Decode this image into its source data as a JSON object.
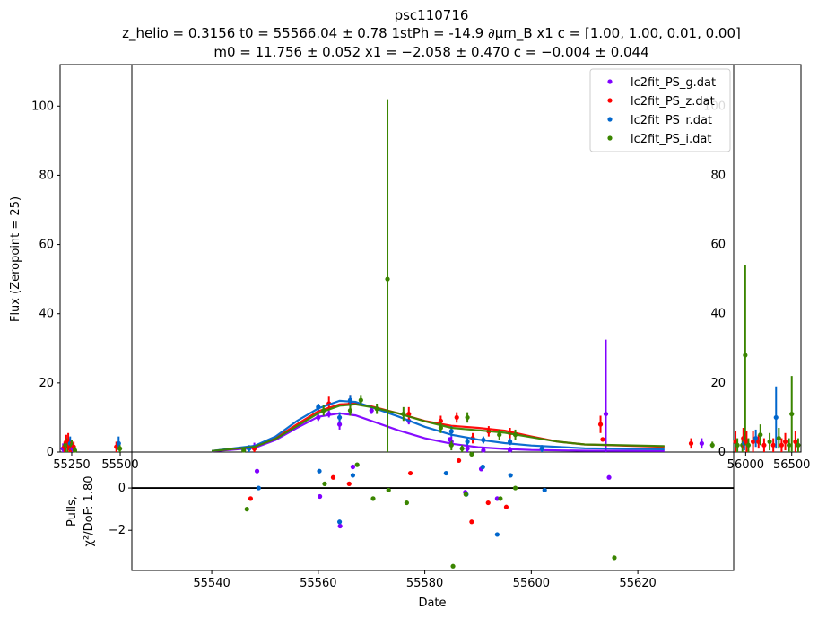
{
  "title": {
    "line1": "psc110716",
    "line2": "z_helio = 0.3156 t0 = 55566.04 ± 0.78 1stPh = -14.9 ∂μm_B x1 c = [1.00, 1.00, 0.01, 0.00]",
    "line3": "m0 = 11.756 ± 0.052 x1 = −2.058 ± 0.470 c = −0.004 ± 0.044"
  },
  "chart_data": {
    "type": "scatter",
    "ylabel": "Flux (Zeropoint = 25)",
    "xlabel": "Date",
    "pulls_ylabel_line1": "Pulls,",
    "pulls_ylabel_line2": "χ²/DoF: 1.80",
    "ylim": [
      0,
      112
    ],
    "xlim_main": [
      55525,
      55638
    ],
    "xlim_left_inset": [
      55190,
      55560
    ],
    "xlim_right_inset": [
      55870,
      56600
    ],
    "pulls_ylim": [
      -3.9,
      1.7
    ],
    "main_xticks": [
      "55540",
      "55560",
      "55580",
      "55600",
      "55620"
    ],
    "yticks": [
      "0",
      "20",
      "40",
      "60",
      "80",
      "100"
    ],
    "pulls_yticks": [
      "0",
      "−2"
    ],
    "left_inset_xticks": [
      "55250",
      "55500"
    ],
    "right_inset_xticks": [
      "56000",
      "56500"
    ],
    "legend_location": "upper right",
    "series": [
      {
        "name": "lc2fit_PS_g.dat",
        "color": "#8000ff",
        "points": [
          [
            55548,
            1.5,
            1.2
          ],
          [
            55560,
            10.0,
            1.0
          ],
          [
            55562,
            11.0,
            1.0
          ],
          [
            55564,
            8.0,
            1.5
          ],
          [
            55566,
            12.0,
            1.0
          ],
          [
            55570,
            12.0,
            1.0
          ],
          [
            55577,
            9.0,
            1.0
          ],
          [
            55585,
            3.0,
            1.5
          ],
          [
            55588,
            1.0,
            1.0
          ],
          [
            55591,
            0.5,
            1.0
          ],
          [
            55596,
            0.5,
            1.0
          ],
          [
            55614,
            11.0,
            21.5
          ]
        ],
        "model": [
          [
            55540,
            0.2
          ],
          [
            55548,
            1.2
          ],
          [
            55552,
            3.5
          ],
          [
            55556,
            7.0
          ],
          [
            55560,
            10.2
          ],
          [
            55564,
            11.2
          ],
          [
            55567,
            10.6
          ],
          [
            55570,
            9.0
          ],
          [
            55575,
            6.3
          ],
          [
            55580,
            4.0
          ],
          [
            55585,
            2.4
          ],
          [
            55590,
            1.4
          ],
          [
            55595,
            0.9
          ],
          [
            55600,
            0.6
          ],
          [
            55610,
            0.4
          ],
          [
            55625,
            0.3
          ]
        ],
        "pulls": [
          [
            55548.5,
            0.8
          ],
          [
            55560.3,
            -0.4
          ],
          [
            55564.1,
            -1.8
          ],
          [
            55566.5,
            1.0
          ],
          [
            55584.7,
            2.3
          ],
          [
            55587.6,
            -0.2
          ],
          [
            55590.6,
            0.9
          ],
          [
            55593.6,
            -0.5
          ],
          [
            55614.6,
            0.5
          ]
        ]
      },
      {
        "name": "lc2fit_PS_z.dat",
        "color": "#ff0000",
        "points": [
          [
            55548,
            1.0,
            1.0
          ],
          [
            55562,
            14.0,
            2.0
          ],
          [
            55566,
            14.0,
            2.5
          ],
          [
            55577,
            11.0,
            2.0
          ],
          [
            55583,
            9.0,
            1.5
          ],
          [
            55586,
            10.0,
            1.5
          ],
          [
            55589,
            4.0,
            1.5
          ],
          [
            55592,
            6.0,
            1.5
          ],
          [
            55596,
            5.5,
            1.5
          ],
          [
            55613,
            8.0,
            2.5
          ]
        ],
        "model": [
          [
            55540,
            0.3
          ],
          [
            55548,
            1.5
          ],
          [
            55552,
            4.0
          ],
          [
            55556,
            8.0
          ],
          [
            55560,
            11.8
          ],
          [
            55564,
            13.8
          ],
          [
            55567,
            14.0
          ],
          [
            55570,
            13.2
          ],
          [
            55575,
            11.2
          ],
          [
            55580,
            9.0
          ],
          [
            55585,
            7.6
          ],
          [
            55590,
            7.0
          ],
          [
            55595,
            6.2
          ],
          [
            55600,
            4.5
          ],
          [
            55605,
            3.0
          ],
          [
            55610,
            2.2
          ],
          [
            55625,
            1.5
          ]
        ],
        "pulls": [
          [
            55547.3,
            -0.5
          ],
          [
            55562.8,
            0.5
          ],
          [
            55565.8,
            0.2
          ],
          [
            55577.3,
            0.7
          ],
          [
            55586.4,
            1.3
          ],
          [
            55588.8,
            -1.6
          ],
          [
            55591.9,
            -0.7
          ],
          [
            55595.3,
            -0.9
          ],
          [
            55613.4,
            2.3
          ]
        ]
      },
      {
        "name": "lc2fit_PS_r.dat",
        "color": "#0066cc",
        "points": [
          [
            55547,
            1.0,
            1.0
          ],
          [
            55560,
            13.0,
            1.0
          ],
          [
            55564,
            10.0,
            1.5
          ],
          [
            55566,
            15.0,
            1.5
          ],
          [
            55585,
            6.0,
            1.5
          ],
          [
            55588,
            3.0,
            1.0
          ],
          [
            55591,
            3.5,
            1.0
          ],
          [
            55596,
            3.0,
            1.0
          ],
          [
            55602,
            1.0,
            1.0
          ]
        ],
        "model": [
          [
            55540,
            0.3
          ],
          [
            55548,
            1.8
          ],
          [
            55552,
            4.5
          ],
          [
            55556,
            9.0
          ],
          [
            55560,
            12.6
          ],
          [
            55564,
            14.8
          ],
          [
            55567,
            14.5
          ],
          [
            55570,
            13.0
          ],
          [
            55575,
            10.3
          ],
          [
            55580,
            7.3
          ],
          [
            55585,
            5.0
          ],
          [
            55590,
            3.6
          ],
          [
            55595,
            2.6
          ],
          [
            55600,
            1.9
          ],
          [
            55610,
            1.1
          ],
          [
            55625,
            0.8
          ]
        ],
        "pulls": [
          [
            55548.8,
            0.0
          ],
          [
            55560.2,
            0.8
          ],
          [
            55564.0,
            -1.6
          ],
          [
            55566.5,
            0.6
          ],
          [
            55584.0,
            0.7
          ],
          [
            55587.8,
            -0.3
          ],
          [
            55590.9,
            1.0
          ],
          [
            55593.6,
            -2.2
          ],
          [
            55596.1,
            0.6
          ],
          [
            55602.5,
            -0.1
          ]
        ]
      },
      {
        "name": "lc2fit_PS_i.dat",
        "color": "#3a8500",
        "points": [
          [
            55546,
            0.5,
            0.8
          ],
          [
            55561,
            12.0,
            1.5
          ],
          [
            55566,
            12.0,
            1.5
          ],
          [
            55568,
            15.0,
            1.5
          ],
          [
            55571,
            12.5,
            1.5
          ],
          [
            55573,
            50.0,
            52.0
          ],
          [
            55576,
            11.0,
            2.0
          ],
          [
            55583,
            7.0,
            1.5
          ],
          [
            55585,
            2.0,
            1.5
          ],
          [
            55587,
            1.0,
            1.0
          ],
          [
            55588,
            10.0,
            1.5
          ],
          [
            55594,
            5.0,
            1.5
          ],
          [
            55597,
            5.0,
            1.5
          ]
        ],
        "model": [
          [
            55540,
            0.3
          ],
          [
            55548,
            1.5
          ],
          [
            55552,
            3.8
          ],
          [
            55556,
            7.5
          ],
          [
            55560,
            11.2
          ],
          [
            55564,
            13.4
          ],
          [
            55567,
            13.8
          ],
          [
            55570,
            13.0
          ],
          [
            55575,
            11.2
          ],
          [
            55580,
            8.9
          ],
          [
            55585,
            7.0
          ],
          [
            55590,
            6.3
          ],
          [
            55595,
            5.6
          ],
          [
            55600,
            4.3
          ],
          [
            55605,
            3.0
          ],
          [
            55610,
            2.2
          ],
          [
            55625,
            1.7
          ]
        ],
        "pulls": [
          [
            55546.6,
            -1.0
          ],
          [
            55561.2,
            0.2
          ],
          [
            55567.3,
            1.1
          ],
          [
            55570.3,
            -0.5
          ],
          [
            55573.2,
            -0.1
          ],
          [
            55576.6,
            -0.7
          ],
          [
            55585.3,
            -3.7
          ],
          [
            55587.7,
            -0.3
          ],
          [
            55588.8,
            1.6
          ],
          [
            55594.2,
            -0.5
          ],
          [
            55597.0,
            0.0
          ],
          [
            55615.6,
            -3.3
          ]
        ]
      }
    ],
    "left_inset_points": [
      [
        55205,
        1.0,
        1.5,
        0
      ],
      [
        55212,
        1.5,
        1.5,
        1
      ],
      [
        55218,
        2.0,
        2.0,
        3
      ],
      [
        55222,
        3.0,
        2.0,
        1
      ],
      [
        55228,
        2.0,
        2.0,
        3
      ],
      [
        55232,
        3.0,
        2.5,
        1
      ],
      [
        55238,
        2.0,
        2.0,
        1
      ],
      [
        55242,
        2.5,
        2.0,
        2
      ],
      [
        55246,
        1.5,
        1.5,
        1
      ],
      [
        55250,
        2.0,
        1.5,
        3
      ],
      [
        55255,
        1.0,
        1.0,
        0
      ],
      [
        55260,
        1.5,
        1.5,
        1
      ],
      [
        55266,
        0.5,
        1.0,
        3
      ],
      [
        55480,
        1.5,
        1.5,
        1
      ],
      [
        55492,
        2.5,
        2.0,
        2
      ],
      [
        55498,
        1.0,
        1.0,
        3
      ]
    ],
    "right_inset_points": [
      [
        55890,
        3.0,
        3.0,
        1
      ],
      [
        55910,
        2.0,
        2.0,
        3
      ],
      [
        55965,
        2.0,
        2.0,
        3
      ],
      [
        55975,
        4.0,
        3.0,
        1
      ],
      [
        55985,
        2.5,
        2.0,
        2
      ],
      [
        55995,
        28.0,
        26.0,
        3
      ],
      [
        56010,
        3.0,
        3.0,
        1
      ],
      [
        56030,
        2.0,
        2.0,
        3
      ],
      [
        56080,
        3.0,
        3.0,
        1
      ],
      [
        56110,
        4.0,
        2.5,
        2
      ],
      [
        56140,
        3.0,
        2.0,
        1
      ],
      [
        56160,
        5.0,
        3.0,
        3
      ],
      [
        56200,
        2.0,
        2.0,
        1
      ],
      [
        56260,
        3.0,
        2.5,
        3
      ],
      [
        56300,
        2.0,
        2.0,
        1
      ],
      [
        56330,
        10.0,
        9.0,
        2
      ],
      [
        56360,
        4.0,
        3.0,
        3
      ],
      [
        56390,
        2.0,
        2.0,
        1
      ],
      [
        56430,
        3.0,
        2.5,
        1
      ],
      [
        56470,
        2.0,
        2.0,
        3
      ],
      [
        56500,
        11.0,
        11.0,
        3
      ],
      [
        56540,
        3.0,
        3.0,
        1
      ],
      [
        56570,
        2.0,
        2.0,
        3
      ]
    ],
    "inset_far_points": [
      [
        0,
        55630,
        2.5,
        1.5,
        1
      ],
      [
        0,
        55632,
        2.5,
        1.5,
        0
      ],
      [
        0,
        55634,
        2.0,
        1.0,
        3
      ]
    ]
  }
}
